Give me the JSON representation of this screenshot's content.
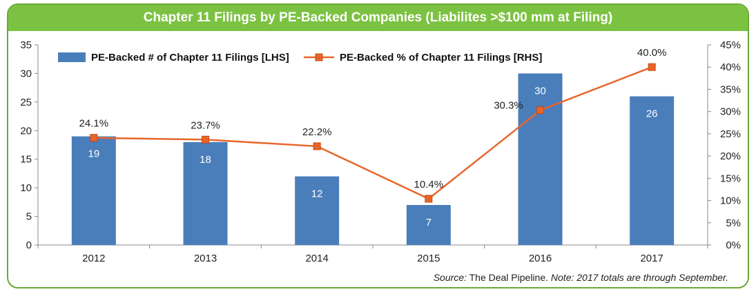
{
  "chart_data": {
    "type": "bar",
    "title": "Chapter 11 Filings by PE-Backed Companies (Liabilites >$100 mm at Filing)",
    "categories": [
      "2012",
      "2013",
      "2014",
      "2015",
      "2016",
      "2017"
    ],
    "series": [
      {
        "name": "PE-Backed # of Chapter 11 Filings [LHS]",
        "type": "bar",
        "axis": "left",
        "values": [
          19,
          18,
          12,
          7,
          30,
          26
        ],
        "labels": [
          "19",
          "18",
          "12",
          "7",
          "30",
          "26"
        ],
        "color": "#4a7ebb"
      },
      {
        "name": "PE-Backed % of Chapter 11 Filings [RHS]",
        "type": "line",
        "axis": "right",
        "values": [
          24.1,
          23.7,
          22.2,
          10.4,
          30.3,
          40.0
        ],
        "labels": [
          "24.1%",
          "23.7%",
          "22.2%",
          "10.4%",
          "30.3%",
          "40.0%"
        ],
        "color": "#e8652a"
      }
    ],
    "y_left": {
      "lim": [
        0,
        35
      ],
      "ticks": [
        "0",
        "5",
        "10",
        "15",
        "20",
        "25",
        "30",
        "35"
      ]
    },
    "y_right": {
      "lim": [
        0,
        45
      ],
      "ticks": [
        "0%",
        "5%",
        "10%",
        "15%",
        "20%",
        "25%",
        "30%",
        "35%",
        "40%",
        "45%"
      ]
    },
    "legend_position": "top-left",
    "grid": false
  },
  "source": {
    "prefix": "Source:",
    "text": " The Deal Pipeline. ",
    "note": "Note: 2017 totals are through September."
  },
  "colors": {
    "title_bar": "#7cc242",
    "frame_border": "#6aa837"
  }
}
